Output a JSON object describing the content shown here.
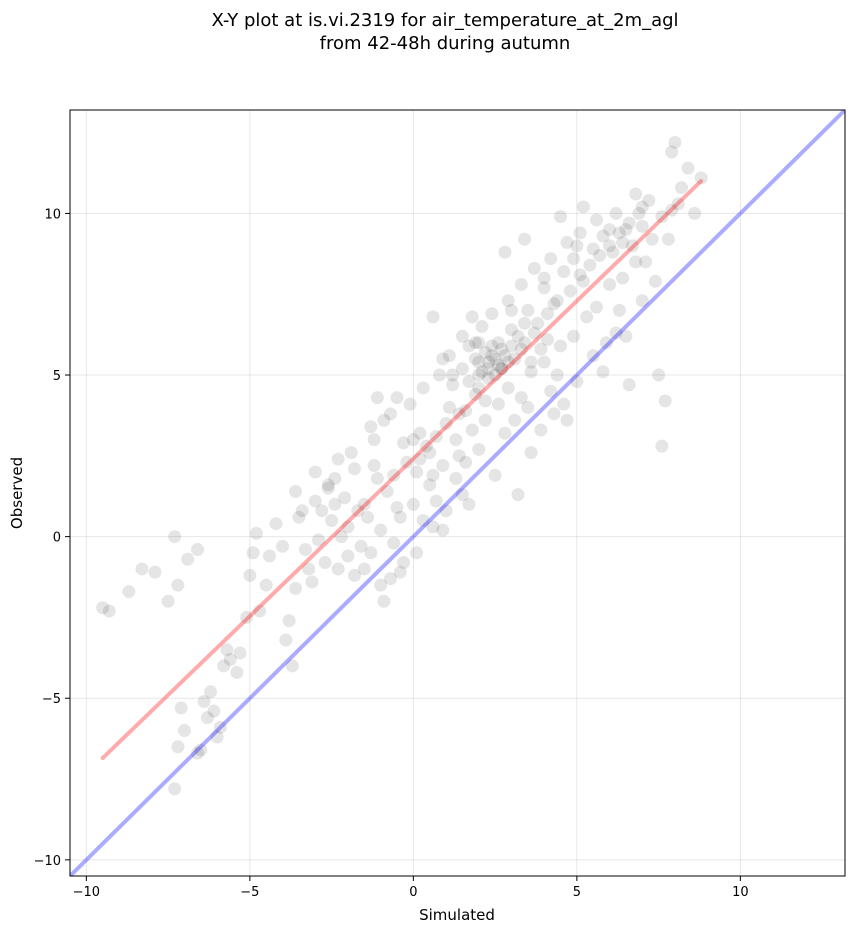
{
  "chart_data": {
    "type": "scatter",
    "title_line1": "X-Y plot at is.vi.2319 for air_temperature_at_2m_agl",
    "title_line2": "from 42-48h during autumn",
    "xlabel": "Simulated",
    "ylabel": "Observed",
    "xlim": [
      -10.5,
      13.2
    ],
    "ylim": [
      -10.5,
      13.2
    ],
    "xticks": [
      -10,
      -5,
      0,
      5,
      10
    ],
    "yticks": [
      -10,
      -5,
      0,
      5,
      10
    ],
    "xtick_labels": [
      "−10",
      "−5",
      "0",
      "5",
      "10"
    ],
    "ytick_labels": [
      "−10",
      "−5",
      "0",
      "5",
      "10"
    ],
    "grid": true,
    "point_color": "#000000",
    "point_opacity": 0.1,
    "fit_line": {
      "color": "#ff0000",
      "opacity": 0.33,
      "x": [
        -9.5,
        8.8
      ],
      "y": [
        -6.85,
        11.0
      ]
    },
    "identity_line": {
      "color": "#0000ff",
      "opacity": 0.33,
      "x": [
        -10.5,
        13.2
      ],
      "y": [
        -10.5,
        13.2
      ]
    },
    "points": [
      [
        -9.5,
        -2.2
      ],
      [
        -9.3,
        -2.3
      ],
      [
        -8.7,
        -1.7
      ],
      [
        -8.3,
        -1.0
      ],
      [
        -7.9,
        -1.1
      ],
      [
        -7.5,
        -2.0
      ],
      [
        -7.3,
        0.0
      ],
      [
        -7.2,
        -1.5
      ],
      [
        -6.9,
        -0.7
      ],
      [
        -6.6,
        -0.4
      ],
      [
        -7.3,
        -7.8
      ],
      [
        -7.2,
        -6.5
      ],
      [
        -7.1,
        -5.3
      ],
      [
        -7.0,
        -6.0
      ],
      [
        -6.6,
        -6.7
      ],
      [
        -6.5,
        -6.6
      ],
      [
        -6.4,
        -5.1
      ],
      [
        -6.3,
        -5.6
      ],
      [
        -6.2,
        -4.8
      ],
      [
        -6.1,
        -5.4
      ],
      [
        -6.0,
        -6.2
      ],
      [
        -5.9,
        -5.9
      ],
      [
        -5.8,
        -4.0
      ],
      [
        -5.7,
        -3.5
      ],
      [
        -5.6,
        -3.8
      ],
      [
        -5.4,
        -4.2
      ],
      [
        -5.3,
        -3.6
      ],
      [
        -5.1,
        -2.5
      ],
      [
        -5.0,
        -1.2
      ],
      [
        -4.9,
        -0.5
      ],
      [
        -4.8,
        0.1
      ],
      [
        -4.7,
        -2.3
      ],
      [
        -4.5,
        -1.5
      ],
      [
        -4.2,
        0.4
      ],
      [
        -4.0,
        -0.3
      ],
      [
        -3.9,
        -3.2
      ],
      [
        -3.8,
        -2.6
      ],
      [
        -3.7,
        -4.0
      ],
      [
        -3.6,
        -1.6
      ],
      [
        -3.5,
        0.6
      ],
      [
        -3.2,
        -1.0
      ],
      [
        -3.0,
        1.1
      ],
      [
        -2.8,
        0.8
      ],
      [
        -2.6,
        1.5
      ],
      [
        -2.4,
        1.8
      ],
      [
        -2.1,
        1.2
      ],
      [
        -1.8,
        2.1
      ],
      [
        -1.5,
        1.0
      ],
      [
        -1.3,
        -0.5
      ],
      [
        -1.0,
        -1.5
      ],
      [
        -0.9,
        -2.0
      ],
      [
        -0.7,
        -1.3
      ],
      [
        -0.5,
        0.9
      ],
      [
        -0.3,
        -0.8
      ],
      [
        0.3,
        0.5
      ],
      [
        0.6,
        0.3
      ],
      [
        1.0,
        0.8
      ],
      [
        1.5,
        1.3
      ],
      [
        2.5,
        1.9
      ],
      [
        3.2,
        1.3
      ],
      [
        3.6,
        2.6
      ],
      [
        4.3,
        3.8
      ],
      [
        4.7,
        3.6
      ],
      [
        5.0,
        4.8
      ],
      [
        5.5,
        5.6
      ],
      [
        6.2,
        6.3
      ],
      [
        6.6,
        4.7
      ],
      [
        7.5,
        5.0
      ],
      [
        7.7,
        4.2
      ],
      [
        7.6,
        2.8
      ],
      [
        7.8,
        9.2
      ],
      [
        7.9,
        11.9
      ],
      [
        8.0,
        12.2
      ],
      [
        8.2,
        10.8
      ],
      [
        8.4,
        11.4
      ],
      [
        8.6,
        10.0
      ],
      [
        8.8,
        11.1
      ],
      [
        7.2,
        10.4
      ],
      [
        6.8,
        10.6
      ],
      [
        6.5,
        9.5
      ],
      [
        5.2,
        10.2
      ],
      [
        4.5,
        9.9
      ],
      [
        3.4,
        9.2
      ],
      [
        2.8,
        8.8
      ],
      [
        1.8,
        6.8
      ],
      [
        0.6,
        6.8
      ],
      [
        0.9,
        5.5
      ],
      [
        -0.5,
        4.3
      ],
      [
        -1.1,
        4.3
      ],
      [
        -1.2,
        3.0
      ],
      [
        -0.9,
        3.6
      ],
      [
        0.2,
        3.2
      ],
      [
        0.5,
        2.6
      ],
      [
        1.2,
        4.7
      ],
      [
        1.4,
        3.8
      ],
      [
        2.0,
        5.0
      ],
      [
        2.2,
        4.2
      ],
      [
        2.4,
        5.6
      ],
      [
        2.6,
        6.0
      ],
      [
        2.1,
        6.5
      ],
      [
        1.7,
        5.9
      ],
      [
        3.0,
        6.4
      ],
      [
        3.3,
        5.8
      ],
      [
        3.5,
        7.0
      ],
      [
        3.8,
        6.6
      ],
      [
        4.0,
        7.7
      ],
      [
        4.3,
        7.2
      ],
      [
        4.6,
        8.2
      ],
      [
        4.9,
        8.6
      ],
      [
        5.2,
        7.9
      ],
      [
        5.5,
        8.9
      ],
      [
        5.8,
        9.3
      ],
      [
        6.1,
        8.8
      ],
      [
        6.4,
        9.1
      ],
      [
        6.7,
        9.0
      ],
      [
        7.0,
        9.6
      ],
      [
        7.3,
        9.2
      ],
      [
        7.6,
        9.9
      ],
      [
        7.9,
        10.1
      ],
      [
        8.1,
        10.3
      ],
      [
        -2.5,
        0.5
      ],
      [
        -2.0,
        0.3
      ],
      [
        -1.7,
        0.8
      ],
      [
        -1.4,
        0.6
      ],
      [
        -0.8,
        1.4
      ],
      [
        -0.6,
        1.9
      ],
      [
        -0.2,
        2.3
      ],
      [
        0.1,
        2.0
      ],
      [
        0.4,
        2.8
      ],
      [
        0.7,
        3.1
      ],
      [
        1.0,
        3.5
      ],
      [
        1.3,
        3.0
      ],
      [
        1.6,
        3.9
      ],
      [
        1.9,
        4.4
      ],
      [
        2.3,
        4.9
      ],
      [
        2.7,
        5.2
      ],
      [
        3.1,
        5.5
      ],
      [
        3.4,
        6.0
      ],
      [
        3.7,
        6.3
      ],
      [
        4.1,
        6.9
      ],
      [
        4.4,
        7.3
      ],
      [
        4.8,
        7.6
      ],
      [
        5.1,
        8.1
      ],
      [
        5.4,
        8.4
      ],
      [
        5.7,
        8.7
      ],
      [
        6.0,
        9.0
      ],
      [
        6.3,
        9.4
      ],
      [
        6.6,
        9.7
      ],
      [
        6.9,
        10.0
      ],
      [
        -3.3,
        -0.4
      ],
      [
        -2.9,
        -0.1
      ],
      [
        -2.2,
        0.0
      ],
      [
        -1.6,
        -0.3
      ],
      [
        -1.0,
        0.2
      ],
      [
        -0.4,
        0.6
      ],
      [
        0.0,
        1.0
      ],
      [
        0.5,
        1.6
      ],
      [
        0.9,
        2.2
      ],
      [
        1.4,
        2.5
      ],
      [
        1.8,
        3.3
      ],
      [
        2.2,
        3.6
      ],
      [
        2.6,
        4.1
      ],
      [
        2.9,
        4.6
      ],
      [
        3.3,
        4.3
      ],
      [
        3.6,
        5.1
      ],
      [
        4.0,
        5.4
      ],
      [
        4.5,
        5.9
      ],
      [
        4.9,
        6.2
      ],
      [
        5.3,
        6.8
      ],
      [
        5.6,
        7.1
      ],
      [
        6.0,
        7.8
      ],
      [
        6.4,
        8.0
      ],
      [
        6.8,
        8.5
      ],
      [
        -3.6,
        1.4
      ],
      [
        -3.0,
        2.0
      ],
      [
        -2.3,
        2.4
      ],
      [
        -1.9,
        2.6
      ],
      [
        -1.3,
        3.4
      ],
      [
        -0.7,
        3.8
      ],
      [
        -0.1,
        4.1
      ],
      [
        0.3,
        4.6
      ],
      [
        0.8,
        5.0
      ],
      [
        1.1,
        5.6
      ],
      [
        1.5,
        6.2
      ],
      [
        1.9,
        6.0
      ],
      [
        2.4,
        6.9
      ],
      [
        2.9,
        7.3
      ],
      [
        3.3,
        7.8
      ],
      [
        3.7,
        8.3
      ],
      [
        4.2,
        8.6
      ],
      [
        4.7,
        9.1
      ],
      [
        5.1,
        9.4
      ],
      [
        5.6,
        9.8
      ],
      [
        6.2,
        10.0
      ],
      [
        2.0,
        5.4
      ],
      [
        2.3,
        5.2
      ],
      [
        2.5,
        5.5
      ],
      [
        2.7,
        5.8
      ],
      [
        2.2,
        5.7
      ],
      [
        2.6,
        5.3
      ],
      [
        2.8,
        5.6
      ],
      [
        2.4,
        5.9
      ],
      [
        2.1,
        5.1
      ],
      [
        2.9,
        5.4
      ],
      [
        2.3,
        5.4
      ],
      [
        2.5,
        5.0
      ],
      [
        2.7,
        5.2
      ],
      [
        1.9,
        5.5
      ],
      [
        3.0,
        5.9
      ],
      [
        3.2,
        6.2
      ],
      [
        2.0,
        4.6
      ],
      [
        1.7,
        4.8
      ],
      [
        1.5,
        5.2
      ],
      [
        1.2,
        5.0
      ],
      [
        3.4,
        6.6
      ],
      [
        3.6,
        5.4
      ],
      [
        3.9,
        5.8
      ],
      [
        4.1,
        6.1
      ],
      [
        0.2,
        2.4
      ],
      [
        -0.3,
        2.9
      ],
      [
        0.6,
        1.9
      ],
      [
        -1.5,
        -1.0
      ],
      [
        -2.7,
        -0.8
      ],
      [
        -2.0,
        -0.6
      ],
      [
        -0.6,
        -0.2
      ],
      [
        0.1,
        -0.5
      ],
      [
        -1.1,
        1.8
      ],
      [
        -2.4,
        1.0
      ],
      [
        3.9,
        3.3
      ],
      [
        4.2,
        4.5
      ],
      [
        4.6,
        4.1
      ],
      [
        5.9,
        6.0
      ],
      [
        6.3,
        7.0
      ],
      [
        7.1,
        8.5
      ],
      [
        7.4,
        7.9
      ],
      [
        3.1,
        3.6
      ],
      [
        2.0,
        2.7
      ],
      [
        1.3,
        1.8
      ],
      [
        -1.8,
        -1.2
      ],
      [
        -0.4,
        -1.1
      ],
      [
        5.8,
        5.1
      ],
      [
        6.5,
        6.2
      ],
      [
        7.0,
        7.3
      ],
      [
        4.4,
        5.0
      ],
      [
        3.5,
        4.0
      ],
      [
        2.8,
        3.2
      ],
      [
        1.6,
        2.3
      ],
      [
        0.7,
        1.1
      ],
      [
        -3.4,
        0.8
      ],
      [
        -2.6,
        1.6
      ],
      [
        -1.2,
        2.2
      ],
      [
        0.0,
        3.0
      ],
      [
        1.1,
        4.0
      ],
      [
        2.0,
        6.0
      ],
      [
        3.0,
        7.0
      ],
      [
        4.0,
        8.0
      ],
      [
        5.0,
        9.0
      ],
      [
        6.0,
        9.5
      ],
      [
        7.0,
        10.2
      ],
      [
        -4.4,
        -0.6
      ],
      [
        -3.1,
        -1.4
      ],
      [
        -2.3,
        -1.0
      ],
      [
        0.9,
        0.2
      ],
      [
        1.7,
        1.0
      ]
    ]
  }
}
